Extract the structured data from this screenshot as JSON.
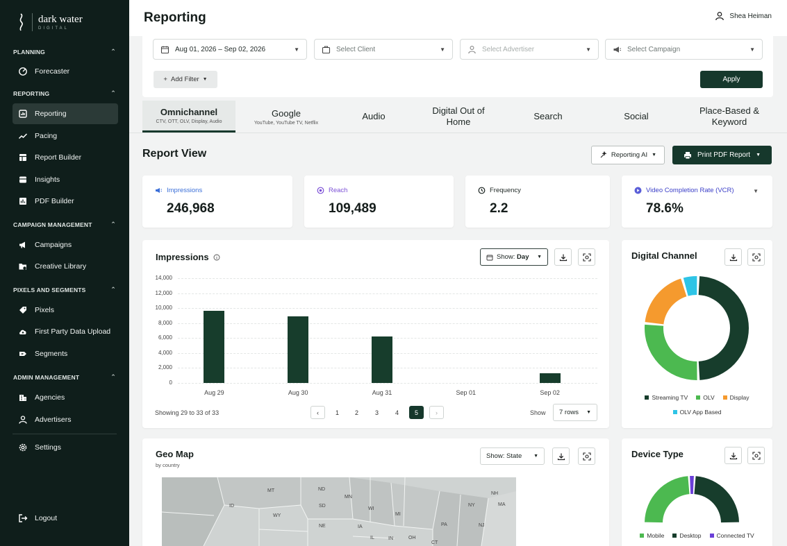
{
  "brand": {
    "name": "dark water",
    "sub": "DIGITAL"
  },
  "header": {
    "title": "Reporting",
    "user": "Shea Heiman"
  },
  "sidebar": {
    "sections": [
      {
        "label": "PLANNING",
        "items": [
          {
            "label": "Forecaster",
            "icon": "forecast-icon"
          }
        ]
      },
      {
        "label": "REPORTING",
        "items": [
          {
            "label": "Reporting",
            "icon": "reporting-icon",
            "active": true
          },
          {
            "label": "Pacing",
            "icon": "pacing-icon"
          },
          {
            "label": "Report Builder",
            "icon": "report-builder-icon"
          },
          {
            "label": "Insights",
            "icon": "insights-icon"
          },
          {
            "label": "PDF Builder",
            "icon": "pdf-builder-icon"
          }
        ]
      },
      {
        "label": "CAMPAIGN MANAGEMENT",
        "items": [
          {
            "label": "Campaigns",
            "icon": "megaphone-icon"
          },
          {
            "label": "Creative Library",
            "icon": "creative-library-icon"
          }
        ]
      },
      {
        "label": "PIXELS AND SEGMENTS",
        "items": [
          {
            "label": "Pixels",
            "icon": "tag-icon"
          },
          {
            "label": "First Party Data Upload",
            "icon": "upload-icon"
          },
          {
            "label": "Segments",
            "icon": "segments-icon"
          }
        ]
      },
      {
        "label": "ADMIN MANAGEMENT",
        "items": [
          {
            "label": "Agencies",
            "icon": "building-icon"
          },
          {
            "label": "Advertisers",
            "icon": "person-icon"
          }
        ]
      }
    ],
    "settings": "Settings",
    "logout": "Logout"
  },
  "filters": {
    "date_range": "Aug 01, 2026 – Sep 02, 2026",
    "client_placeholder": "Select Client",
    "advertiser_placeholder": "Select Advertiser",
    "campaign_placeholder": "Select Campaign",
    "add_filter": "Add Filter",
    "apply": "Apply"
  },
  "tabs": [
    {
      "label": "Omnichannel",
      "sub": "CTV, OTT, OLV, Display, Audio",
      "active": true
    },
    {
      "label": "Google",
      "sub": "YouTube, YouTube TV, Netflix"
    },
    {
      "label": "Audio",
      "sub": ""
    },
    {
      "label": "Digital Out of Home",
      "sub": ""
    },
    {
      "label": "Search",
      "sub": ""
    },
    {
      "label": "Social",
      "sub": ""
    },
    {
      "label": "Place-Based & Keyword",
      "sub": ""
    }
  ],
  "report_view": {
    "title": "Report View",
    "ai_button": "Reporting AI",
    "print_button": "Print PDF Report"
  },
  "kpis": [
    {
      "label": "Impressions",
      "value": "246,968",
      "color": "#3b6fd8",
      "icon": "impressions-icon"
    },
    {
      "label": "Reach",
      "value": "109,489",
      "color": "#7b4fd6",
      "icon": "reach-icon"
    },
    {
      "label": "Frequency",
      "value": "2.2",
      "color": "#1b2421",
      "icon": "frequency-icon"
    },
    {
      "label": "Video Completion Rate (VCR)",
      "value": "78.6%",
      "color": "#3b3fc8",
      "icon": "vcr-icon"
    }
  ],
  "impressions_card": {
    "title": "Impressions",
    "show_prefix": "Show: ",
    "show_value": "Day",
    "paging_text": "Showing 29 to 33 of 33",
    "pages": [
      "1",
      "2",
      "3",
      "4",
      "5"
    ],
    "active_page": "5",
    "rows_label": "Show",
    "rows_value": "7 rows"
  },
  "chart_data": [
    {
      "type": "bar",
      "title": "Impressions",
      "categories": [
        "Aug 29",
        "Aug 30",
        "Aug 31",
        "Sep 01",
        "Sep 02"
      ],
      "values": [
        9600,
        8900,
        6200,
        0,
        1300
      ],
      "ylim": [
        0,
        14000
      ],
      "yticks": [
        "14,000",
        "12,000",
        "10,000",
        "8,000",
        "6,000",
        "4,000",
        "2,000",
        "0"
      ],
      "color": "#173d2c",
      "grid": true
    },
    {
      "type": "pie",
      "title": "Digital Channel",
      "categories": [
        "Streaming TV",
        "OLV",
        "Display",
        "OLV App Based"
      ],
      "values": [
        49,
        27,
        19,
        5
      ],
      "colors": [
        "#173d2c",
        "#4cb950",
        "#f59a2e",
        "#2ec4e6"
      ]
    },
    {
      "type": "pie",
      "title": "Device Type",
      "categories": [
        "Mobile",
        "Desktop",
        "Connected TV"
      ],
      "values": [
        48,
        48,
        4
      ],
      "colors": [
        "#4cb950",
        "#173d2c",
        "#6a3fd8"
      ]
    }
  ],
  "geo_card": {
    "title": "Geo Map",
    "subtitle": "by country",
    "show": "Show: State"
  },
  "geo_states": [
    "MT",
    "ND",
    "MN",
    "WI",
    "MI",
    "NY",
    "NH",
    "MA",
    "ID",
    "WY",
    "SD",
    "NE",
    "IA",
    "IL",
    "IN",
    "OH",
    "PA",
    "NJ",
    "CT"
  ]
}
